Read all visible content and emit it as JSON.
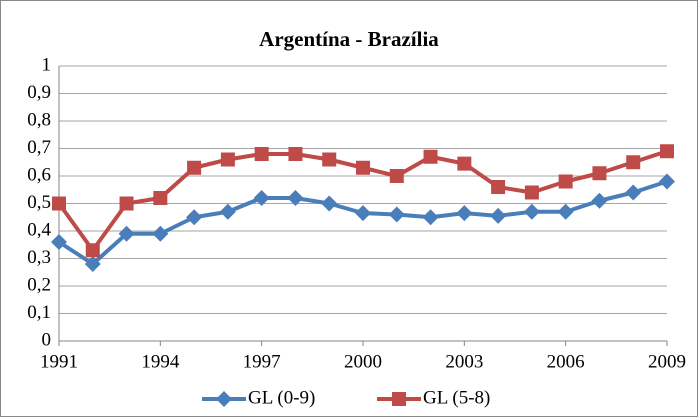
{
  "chart_data": {
    "type": "line",
    "title": "Argentína - Brazília",
    "x": [
      1991,
      1992,
      1993,
      1994,
      1995,
      1996,
      1997,
      1998,
      1999,
      2000,
      2001,
      2002,
      2003,
      2004,
      2005,
      2006,
      2007,
      2008,
      2009
    ],
    "series": [
      {
        "name": "GL (0-9)",
        "color": "#4a7ebb",
        "marker": "diamond",
        "values": [
          0.36,
          0.28,
          0.39,
          0.39,
          0.45,
          0.47,
          0.52,
          0.52,
          0.5,
          0.465,
          0.46,
          0.45,
          0.465,
          0.455,
          0.47,
          0.47,
          0.51,
          0.54,
          0.58
        ]
      },
      {
        "name": "GL (5-8)",
        "color": "#be4b48",
        "marker": "square",
        "values": [
          0.5,
          0.33,
          0.5,
          0.52,
          0.63,
          0.66,
          0.68,
          0.68,
          0.66,
          0.63,
          0.6,
          0.67,
          0.645,
          0.56,
          0.54,
          0.58,
          0.61,
          0.65,
          0.69
        ]
      }
    ],
    "xlim": [
      1991,
      2009
    ],
    "xticks": [
      1991,
      1994,
      1997,
      2000,
      2003,
      2006,
      2009
    ],
    "ylim": [
      0,
      1
    ],
    "yticks": [
      0,
      {
        "value": 0.1,
        "label": "0,1"
      },
      {
        "value": 0.2,
        "label": "0,2"
      },
      {
        "value": 0.3,
        "label": "0,3"
      },
      {
        "value": 0.4,
        "label": "0,4"
      },
      {
        "value": 0.5,
        "label": "0,5"
      },
      {
        "value": 0.6,
        "label": "0,6"
      },
      {
        "value": 0.7,
        "label": "0,7"
      },
      {
        "value": 0.8,
        "label": "0,8"
      },
      {
        "value": 0.9,
        "label": "0,9"
      },
      1
    ],
    "grid": true,
    "legend": "bottom"
  }
}
